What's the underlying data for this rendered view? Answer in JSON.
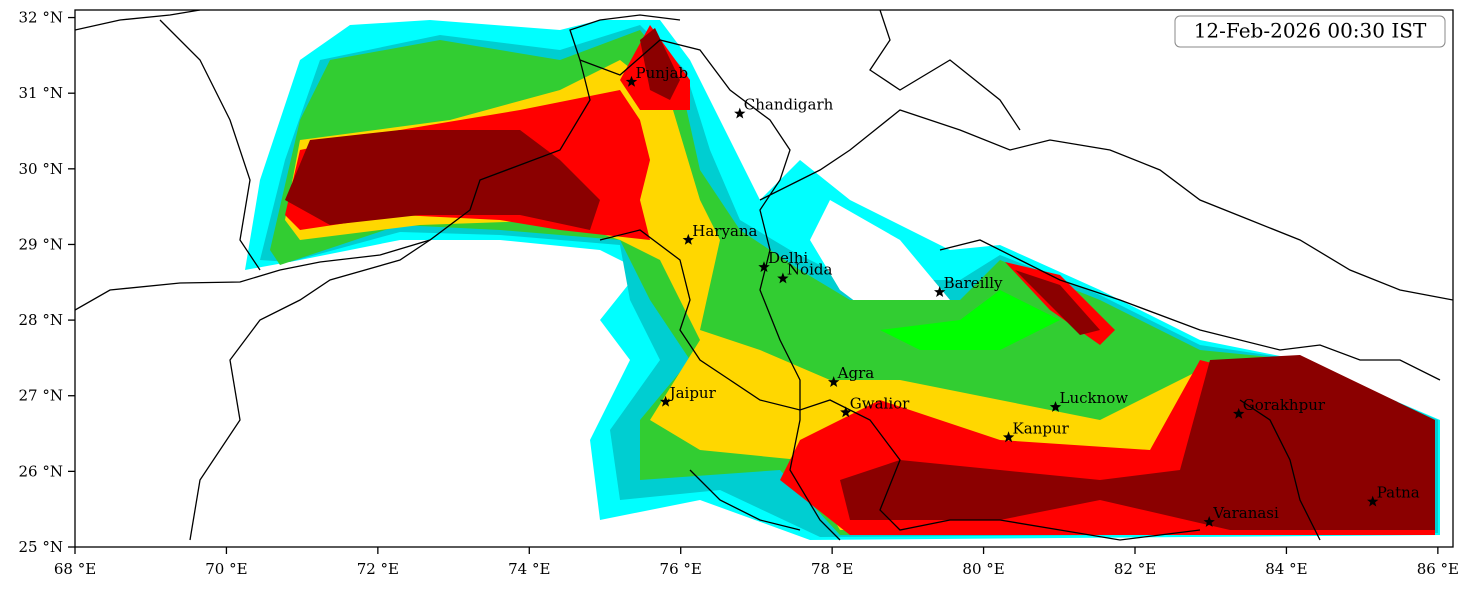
{
  "chart_data": {
    "type": "map",
    "title": "12-Feb-2026 00:30 IST",
    "xlim": [
      68,
      86.2
    ],
    "ylim": [
      25,
      32.1
    ],
    "xticks": [
      {
        "value": 68,
        "label": "68 °E"
      },
      {
        "value": 70,
        "label": "70 °E"
      },
      {
        "value": 72,
        "label": "72 °E"
      },
      {
        "value": 74,
        "label": "74 °E"
      },
      {
        "value": 76,
        "label": "76 °E"
      },
      {
        "value": 78,
        "label": "78 °E"
      },
      {
        "value": 80,
        "label": "80 °E"
      },
      {
        "value": 82,
        "label": "82 °E"
      },
      {
        "value": 84,
        "label": "84 °E"
      },
      {
        "value": 86,
        "label": "86 °E"
      }
    ],
    "yticks": [
      {
        "value": 25,
        "label": "25 °N"
      },
      {
        "value": 26,
        "label": "26 °N"
      },
      {
        "value": 27,
        "label": "27 °N"
      },
      {
        "value": 28,
        "label": "28 °N"
      },
      {
        "value": 29,
        "label": "29 °N"
      },
      {
        "value": 30,
        "label": "30 °N"
      },
      {
        "value": 31,
        "label": "31 °N"
      },
      {
        "value": 32,
        "label": "32 °N"
      }
    ],
    "cities": [
      {
        "name": "Punjab",
        "lon": 75.35,
        "lat": 31.15
      },
      {
        "name": "Chandigarh",
        "lon": 76.78,
        "lat": 30.73
      },
      {
        "name": "Haryana",
        "lon": 76.1,
        "lat": 29.06
      },
      {
        "name": "Delhi",
        "lon": 77.1,
        "lat": 28.7
      },
      {
        "name": "Noida",
        "lon": 77.35,
        "lat": 28.55
      },
      {
        "name": "Bareilly",
        "lon": 79.42,
        "lat": 28.37
      },
      {
        "name": "Agra",
        "lon": 78.02,
        "lat": 27.18
      },
      {
        "name": "Jaipur",
        "lon": 75.8,
        "lat": 26.92
      },
      {
        "name": "Gwalior",
        "lon": 78.18,
        "lat": 26.78
      },
      {
        "name": "Lucknow",
        "lon": 80.95,
        "lat": 26.85
      },
      {
        "name": "Gorakhpur",
        "lon": 83.37,
        "lat": 26.76
      },
      {
        "name": "Kanpur",
        "lon": 80.33,
        "lat": 26.45
      },
      {
        "name": "Varanasi",
        "lon": 82.98,
        "lat": 25.33
      },
      {
        "name": "Patna",
        "lon": 85.14,
        "lat": 25.6
      }
    ]
  }
}
